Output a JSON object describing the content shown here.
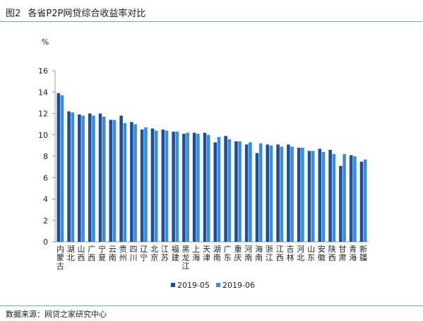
{
  "header": {
    "figure_label": "图2",
    "title": "各省P2P网贷综合收益率对比"
  },
  "footer": {
    "source": "数据来源：网贷之家研究中心"
  },
  "chart_data": {
    "type": "bar",
    "unit": "%",
    "ylim": [
      0,
      16
    ],
    "yticks": [
      0,
      2,
      4,
      6,
      8,
      10,
      12,
      14,
      16
    ],
    "grid": false,
    "legend_position": "bottom",
    "categories": [
      "内蒙古",
      "湖北",
      "山西",
      "广西",
      "宁夏",
      "云南",
      "贵州",
      "四川",
      "辽宁",
      "北京",
      "江苏",
      "福建",
      "黑龙江",
      "上海",
      "天津",
      "湖南",
      "广东",
      "重庆",
      "河南",
      "海南",
      "浙江",
      "江西",
      "吉林",
      "河北",
      "山东",
      "安徽",
      "陕西",
      "甘肃",
      "青海",
      "新疆"
    ],
    "series": [
      {
        "name": "2019-05",
        "color": "#1f4e96",
        "values": [
          13.9,
          12.2,
          11.9,
          12.0,
          12.0,
          11.4,
          11.8,
          11.2,
          10.5,
          10.6,
          10.5,
          10.3,
          10.1,
          10.2,
          10.2,
          9.3,
          9.9,
          9.4,
          9.1,
          8.3,
          9.1,
          9.1,
          9.1,
          8.8,
          8.5,
          8.7,
          8.6,
          7.1,
          8.1,
          7.5
        ]
      },
      {
        "name": "2019-06",
        "color": "#3a8ed8",
        "values": [
          13.7,
          12.1,
          11.8,
          11.8,
          11.7,
          11.4,
          11.1,
          11.0,
          10.7,
          10.4,
          10.4,
          10.3,
          10.2,
          10.1,
          10.0,
          9.8,
          9.6,
          9.4,
          9.3,
          9.2,
          9.0,
          8.9,
          8.9,
          8.8,
          8.5,
          8.4,
          8.2,
          8.2,
          8.0,
          7.7
        ]
      }
    ]
  }
}
